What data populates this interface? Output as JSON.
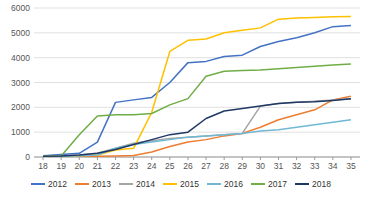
{
  "chart_data": {
    "type": "line",
    "x": [
      18,
      19,
      20,
      21,
      22,
      23,
      24,
      25,
      26,
      27,
      28,
      29,
      30,
      31,
      32,
      33,
      34,
      35
    ],
    "series": [
      {
        "name": "2012",
        "color": "#4472C4",
        "values": [
          50,
          100,
          150,
          600,
          2200,
          2300,
          2400,
          3000,
          3800,
          3850,
          4050,
          4100,
          4450,
          4650,
          4800,
          5000,
          5250,
          5300
        ]
      },
      {
        "name": "2013",
        "color": "#ED7D31",
        "values": [
          30,
          30,
          30,
          30,
          40,
          60,
          200,
          420,
          600,
          700,
          850,
          950,
          1200,
          1500,
          1700,
          1900,
          2300,
          2450
        ]
      },
      {
        "name": "2014",
        "color": "#A5A5A5",
        "values": [
          30,
          40,
          80,
          150,
          350,
          550,
          650,
          750,
          800,
          850,
          900,
          950,
          2050,
          2150,
          2200,
          2250,
          2300,
          2350
        ]
      },
      {
        "name": "2015",
        "color": "#FFC000",
        "values": [
          30,
          30,
          50,
          80,
          280,
          350,
          1800,
          4250,
          4700,
          4750,
          5000,
          5100,
          5200,
          5550,
          5600,
          5620,
          5650,
          5660
        ]
      },
      {
        "name": "2016",
        "color": "#70B8D4",
        "values": [
          30,
          30,
          50,
          80,
          350,
          500,
          600,
          700,
          800,
          850,
          900,
          950,
          1050,
          1100,
          1200,
          1300,
          1400,
          1500
        ]
      },
      {
        "name": "2017",
        "color": "#70AD47",
        "values": [
          30,
          40,
          900,
          1650,
          1700,
          1700,
          1750,
          2100,
          2350,
          3250,
          3450,
          3480,
          3500,
          3550,
          3600,
          3650,
          3700,
          3750
        ]
      },
      {
        "name": "2018",
        "color": "#1F3864",
        "values": [
          30,
          40,
          80,
          150,
          300,
          500,
          700,
          900,
          1000,
          1550,
          1850,
          1950,
          2050,
          2150,
          2200,
          2220,
          2280,
          2350
        ]
      }
    ],
    "xlim": [
      17.5,
      35.5
    ],
    "xticks": [
      18,
      19,
      20,
      21,
      22,
      23,
      24,
      25,
      26,
      27,
      28,
      29,
      30,
      31,
      32,
      33,
      34,
      35
    ],
    "ylim": [
      0,
      6000
    ],
    "yticks": [
      0,
      1000,
      2000,
      3000,
      4000,
      5000,
      6000
    ],
    "grid": true,
    "legend": "bottom"
  }
}
